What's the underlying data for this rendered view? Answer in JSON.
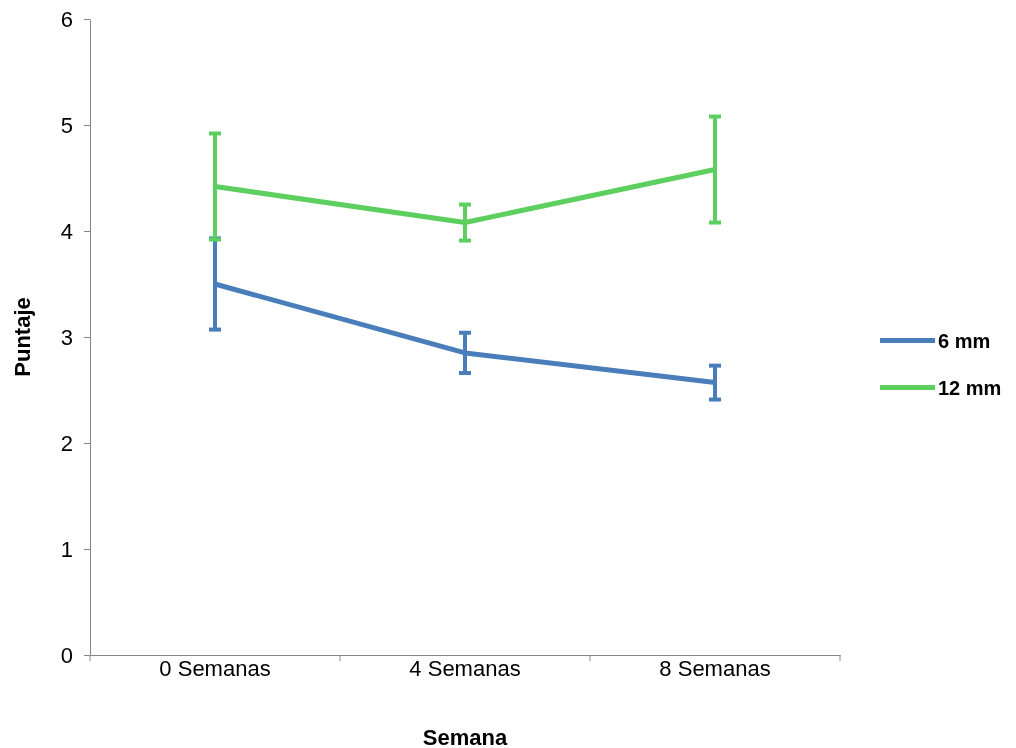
{
  "chart_data": {
    "type": "line",
    "xlabel": "Semana",
    "ylabel": "Puntaje",
    "categories": [
      "0 Semanas",
      "4 Semanas",
      "8 Semanas"
    ],
    "series": [
      {
        "name": "6 mm",
        "color": "#4a7ebb",
        "values": [
          3.5,
          2.85,
          2.57
        ],
        "errors": [
          0.43,
          0.19,
          0.16
        ]
      },
      {
        "name": "12 mm",
        "color": "#5dcf5f",
        "values": [
          4.42,
          4.08,
          4.58
        ],
        "errors": [
          0.5,
          0.17,
          0.5
        ]
      }
    ],
    "ylim": [
      0,
      6
    ],
    "yticks": [
      0,
      1,
      2,
      3,
      4,
      5,
      6
    ],
    "grid": false,
    "legend": "right",
    "marker": "none",
    "line_style": "solid"
  }
}
